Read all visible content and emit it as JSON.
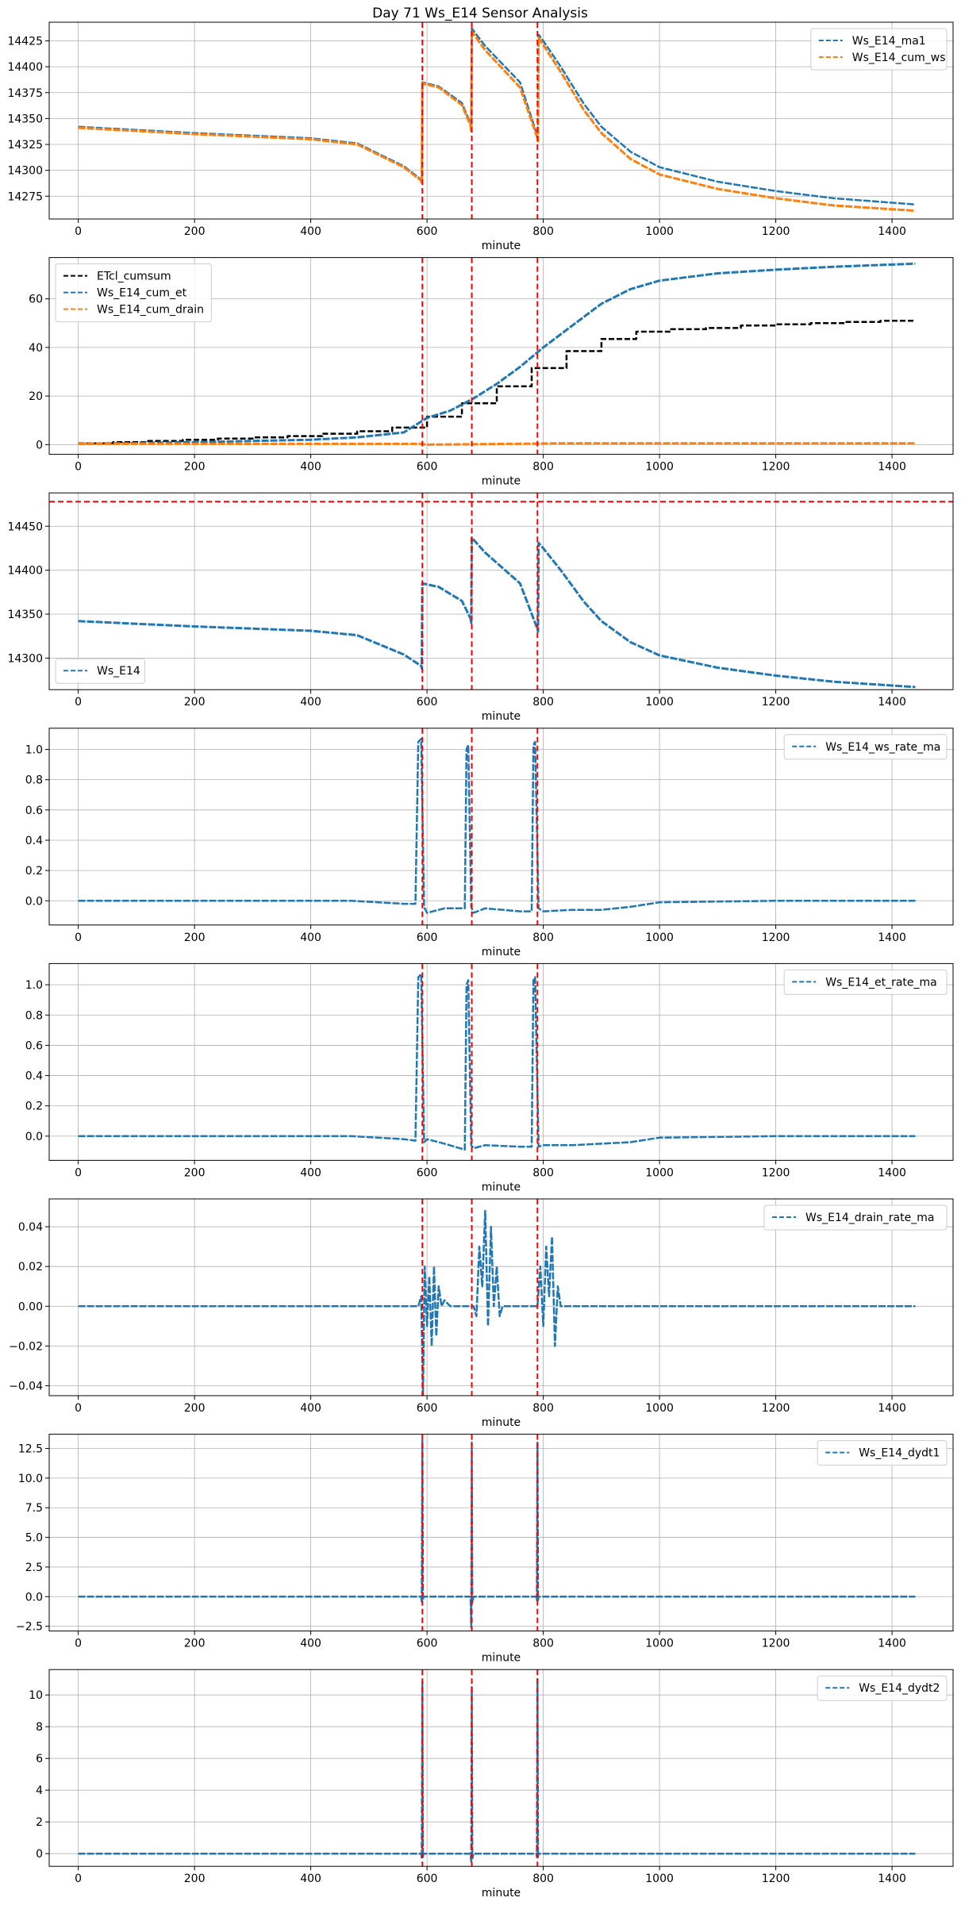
{
  "figure": {
    "title": "Day 71 Ws_E14 Sensor Analysis"
  },
  "colors": {
    "blue": "#1f77b4",
    "orange": "#ff7f0e",
    "black": "#000000",
    "red": "#ff0000",
    "grid": "#b0b0b0"
  },
  "chart_data": [
    {
      "type": "line",
      "xlabel": "minute",
      "xlim": [
        -50,
        1505
      ],
      "ylim": [
        14253,
        14443
      ],
      "xticks": [
        0,
        200,
        400,
        600,
        800,
        1000,
        1200,
        1400
      ],
      "yticks": [
        14275,
        14300,
        14325,
        14350,
        14375,
        14400,
        14425
      ],
      "vlines": [
        592,
        677,
        790
      ],
      "hlines": [],
      "legend": "top-right",
      "series": [
        {
          "name": "Ws_E14_ma1",
          "color": "blue",
          "style": "dashed",
          "width": 2.5,
          "x": [
            0,
            200,
            400,
            480,
            560,
            590,
            591,
            592,
            620,
            660,
            675,
            676,
            677,
            700,
            760,
            790,
            791,
            792,
            800,
            830,
            870,
            900,
            950,
            1000,
            1100,
            1200,
            1300,
            1440
          ],
          "y": [
            14342,
            14336,
            14331,
            14326,
            14304,
            14291,
            14288,
            14385,
            14381,
            14365,
            14345,
            14340,
            14437,
            14420,
            14385,
            14333,
            14330,
            14431,
            14425,
            14400,
            14364,
            14342,
            14318,
            14303,
            14289,
            14280,
            14273,
            14267
          ]
        },
        {
          "name": "Ws_E14_cum_ws",
          "color": "orange",
          "style": "dashed",
          "width": 3,
          "x": [
            0,
            200,
            400,
            480,
            560,
            590,
            591,
            592,
            620,
            660,
            675,
            676,
            677,
            700,
            760,
            790,
            791,
            792,
            800,
            830,
            870,
            900,
            950,
            1000,
            1100,
            1200,
            1300,
            1440
          ],
          "y": [
            14341,
            14335,
            14330,
            14325,
            14303,
            14290,
            14287,
            14384,
            14380,
            14363,
            14343,
            14338,
            14434,
            14416,
            14380,
            14331,
            14328,
            14428,
            14421,
            14395,
            14358,
            14336,
            14311,
            14296,
            14282,
            14273,
            14266,
            14261
          ]
        }
      ]
    },
    {
      "type": "line",
      "xlabel": "minute",
      "xlim": [
        -50,
        1505
      ],
      "ylim": [
        -4,
        77
      ],
      "xticks": [
        0,
        200,
        400,
        600,
        800,
        1000,
        1200,
        1400
      ],
      "yticks": [
        0,
        20,
        40,
        60
      ],
      "vlines": [
        592,
        677,
        790
      ],
      "hlines": [],
      "legend": "top-left",
      "series": [
        {
          "name": "ETcl_cumsum",
          "color": "black",
          "style": "dashed",
          "width": 2.5,
          "step": true,
          "x": [
            0,
            60,
            120,
            180,
            240,
            300,
            360,
            420,
            480,
            540,
            600,
            660,
            720,
            780,
            840,
            900,
            960,
            1020,
            1080,
            1140,
            1200,
            1260,
            1320,
            1380,
            1440
          ],
          "y": [
            0.5,
            1.0,
            1.5,
            2.0,
            2.5,
            3.0,
            3.5,
            4.5,
            5.5,
            7.0,
            11.5,
            17.0,
            24.0,
            31.5,
            38.5,
            43.5,
            46.5,
            47.5,
            48.0,
            49.0,
            49.5,
            50.0,
            50.5,
            51.0,
            51.0
          ]
        },
        {
          "name": "Ws_E14_cum_et",
          "color": "blue",
          "style": "dashed",
          "width": 3,
          "x": [
            0,
            200,
            400,
            480,
            560,
            600,
            640,
            680,
            720,
            760,
            800,
            850,
            900,
            950,
            1000,
            1100,
            1200,
            1300,
            1440
          ],
          "y": [
            0.3,
            1.0,
            2.0,
            3.0,
            5.0,
            11.0,
            14.0,
            19.0,
            25.0,
            32.0,
            40.0,
            49.0,
            58.0,
            64.0,
            67.5,
            70.5,
            72.0,
            73.2,
            74.5
          ]
        },
        {
          "name": "Ws_E14_cum_drain",
          "color": "orange",
          "style": "dashed",
          "width": 3,
          "x": [
            0,
            590,
            600,
            700,
            820,
            1440
          ],
          "y": [
            0.3,
            0.3,
            0.0,
            0.2,
            0.5,
            0.5
          ]
        }
      ]
    },
    {
      "type": "line",
      "xlabel": "minute",
      "xlim": [
        -50,
        1505
      ],
      "ylim": [
        14264,
        14488
      ],
      "xticks": [
        0,
        200,
        400,
        600,
        800,
        1000,
        1200,
        1400
      ],
      "yticks": [
        14300,
        14350,
        14400,
        14450
      ],
      "vlines": [
        592,
        677,
        790
      ],
      "hlines": [
        14478
      ],
      "legend": "bottom-left",
      "series": [
        {
          "name": "Ws_E14",
          "color": "blue",
          "style": "dashed",
          "width": 3,
          "x": [
            0,
            200,
            400,
            480,
            560,
            590,
            591,
            592,
            620,
            660,
            675,
            676,
            677,
            700,
            760,
            790,
            791,
            792,
            800,
            830,
            870,
            900,
            950,
            1000,
            1100,
            1200,
            1300,
            1440
          ],
          "y": [
            14342,
            14336,
            14331,
            14326,
            14304,
            14291,
            14288,
            14385,
            14381,
            14365,
            14345,
            14340,
            14437,
            14420,
            14385,
            14333,
            14330,
            14431,
            14425,
            14400,
            14364,
            14342,
            14318,
            14303,
            14289,
            14280,
            14273,
            14267
          ]
        }
      ]
    },
    {
      "type": "line",
      "xlabel": "minute",
      "xlim": [
        -50,
        1505
      ],
      "ylim": [
        -0.16,
        1.14
      ],
      "xticks": [
        0,
        200,
        400,
        600,
        800,
        1000,
        1200,
        1400
      ],
      "yticks": [
        0.0,
        0.2,
        0.4,
        0.6,
        0.8,
        1.0
      ],
      "vlines": [
        592,
        677,
        790
      ],
      "hlines": [],
      "legend": "top-right",
      "series": [
        {
          "name": "Ws_E14_ws_rate_ma",
          "color": "blue",
          "style": "dashed",
          "width": 2.5,
          "x": [
            0,
            400,
            470,
            560,
            580,
            585,
            590,
            595,
            600,
            630,
            665,
            668,
            671,
            676,
            680,
            700,
            760,
            780,
            783,
            786,
            792,
            800,
            850,
            900,
            950,
            1000,
            1200,
            1440
          ],
          "y": [
            0.0,
            0.0,
            0.0,
            -0.02,
            -0.02,
            1.05,
            1.07,
            -0.04,
            -0.08,
            -0.05,
            -0.05,
            1.0,
            1.03,
            -0.04,
            -0.08,
            -0.05,
            -0.07,
            -0.07,
            1.03,
            1.05,
            -0.05,
            -0.07,
            -0.06,
            -0.06,
            -0.04,
            -0.01,
            0.0,
            0.0
          ]
        }
      ]
    },
    {
      "type": "line",
      "xlabel": "minute",
      "xlim": [
        -50,
        1505
      ],
      "ylim": [
        -0.16,
        1.14
      ],
      "xticks": [
        0,
        200,
        400,
        600,
        800,
        1000,
        1200,
        1400
      ],
      "yticks": [
        0.0,
        0.2,
        0.4,
        0.6,
        0.8,
        1.0
      ],
      "vlines": [
        592,
        677,
        790
      ],
      "hlines": [],
      "legend": "top-right",
      "series": [
        {
          "name": "Ws_E14_et_rate_ma",
          "color": "blue",
          "style": "dashed",
          "width": 2.5,
          "x": [
            0,
            400,
            470,
            560,
            580,
            585,
            590,
            595,
            600,
            630,
            665,
            668,
            671,
            676,
            680,
            700,
            760,
            780,
            783,
            786,
            792,
            800,
            850,
            900,
            950,
            1000,
            1200,
            1440
          ],
          "y": [
            0.0,
            0.0,
            0.0,
            -0.02,
            -0.03,
            1.05,
            1.07,
            -0.04,
            -0.02,
            -0.05,
            -0.09,
            1.0,
            1.03,
            -0.06,
            -0.08,
            -0.06,
            -0.07,
            -0.07,
            1.03,
            1.05,
            -0.07,
            -0.06,
            -0.06,
            -0.05,
            -0.04,
            -0.01,
            0.0,
            0.0
          ]
        }
      ]
    },
    {
      "type": "line",
      "xlabel": "minute",
      "xlim": [
        -50,
        1505
      ],
      "ylim": [
        -0.045,
        0.054
      ],
      "xticks": [
        0,
        200,
        400,
        600,
        800,
        1000,
        1200,
        1400
      ],
      "yticks": [
        -0.04,
        -0.02,
        0.0,
        0.02,
        0.04
      ],
      "vlines": [
        592,
        677,
        790
      ],
      "hlines": [],
      "legend": "top-right",
      "series": [
        {
          "name": "Ws_E14_drain_rate_ma",
          "color": "blue",
          "style": "dashed",
          "width": 2.5,
          "x": [
            0,
            585,
            590,
            593,
            596,
            600,
            604,
            608,
            612,
            616,
            620,
            625,
            630,
            640,
            680,
            685,
            690,
            695,
            700,
            705,
            710,
            715,
            720,
            725,
            730,
            740,
            790,
            795,
            800,
            805,
            810,
            815,
            820,
            825,
            830,
            1440
          ],
          "y": [
            0.0,
            0.0,
            0.005,
            -0.045,
            0.02,
            -0.01,
            0.015,
            -0.02,
            0.02,
            -0.015,
            0.01,
            0.0,
            0.003,
            0.0,
            0.0,
            -0.005,
            0.03,
            0.01,
            0.048,
            -0.01,
            0.04,
            0.0,
            0.02,
            -0.005,
            0.0,
            0.0,
            0.0,
            0.02,
            -0.01,
            0.03,
            0.005,
            0.035,
            -0.02,
            0.01,
            0.0,
            0.0
          ]
        }
      ]
    },
    {
      "type": "line",
      "xlabel": "minute",
      "xlim": [
        -50,
        1505
      ],
      "ylim": [
        -2.9,
        13.7
      ],
      "xticks": [
        0,
        200,
        400,
        600,
        800,
        1000,
        1200,
        1400
      ],
      "yticks": [
        -2.5,
        0.0,
        2.5,
        5.0,
        7.5,
        10.0,
        12.5
      ],
      "vlines": [
        592,
        677,
        790
      ],
      "hlines": [],
      "legend": "top-right",
      "series": [
        {
          "name": "Ws_E14_dydt1",
          "color": "blue",
          "style": "dashed",
          "width": 2.5,
          "x": [
            0,
            590,
            591,
            592,
            593,
            594,
            600,
            675,
            676,
            677,
            678,
            680,
            788,
            789,
            790,
            791,
            792,
            1440
          ],
          "y": [
            0.0,
            0.0,
            -0.5,
            13.2,
            -0.3,
            0.0,
            0.0,
            0.0,
            -2.6,
            13.0,
            -0.5,
            0.0,
            0.0,
            -0.3,
            13.0,
            -0.3,
            0.0,
            0.0
          ]
        }
      ]
    },
    {
      "type": "line",
      "xlabel": "minute",
      "xlim": [
        -50,
        1505
      ],
      "ylim": [
        -0.8,
        11.6
      ],
      "xticks": [
        0,
        200,
        400,
        600,
        800,
        1000,
        1200,
        1400
      ],
      "yticks": [
        0,
        2,
        4,
        6,
        8,
        10
      ],
      "vlines": [
        592,
        677,
        790
      ],
      "hlines": [],
      "legend": "top-right",
      "series": [
        {
          "name": "Ws_E14_dydt2",
          "color": "blue",
          "style": "dashed",
          "width": 2.5,
          "x": [
            0,
            590,
            591,
            592,
            593,
            594,
            600,
            675,
            676,
            677,
            678,
            680,
            788,
            789,
            790,
            791,
            792,
            1440
          ],
          "y": [
            0.0,
            0.0,
            -0.3,
            10.8,
            -0.2,
            0.0,
            0.0,
            0.0,
            -0.5,
            10.5,
            -0.3,
            0.0,
            0.0,
            -0.2,
            11.0,
            -0.2,
            0.0,
            0.0
          ]
        }
      ]
    }
  ]
}
